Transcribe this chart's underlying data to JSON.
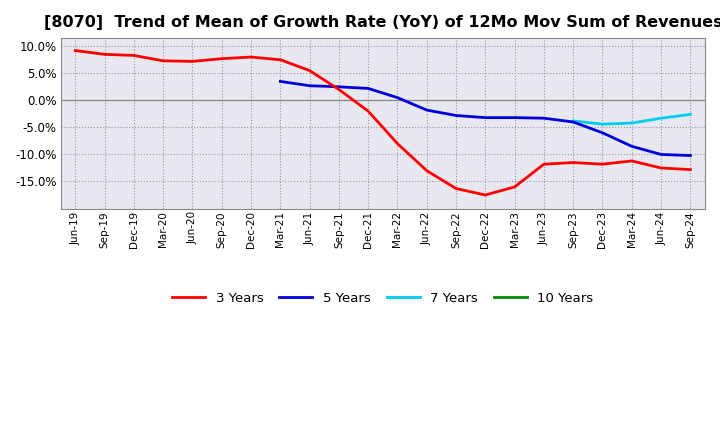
{
  "title": "[8070]  Trend of Mean of Growth Rate (YoY) of 12Mo Mov Sum of Revenues",
  "title_fontsize": 11.5,
  "background_color": "#ffffff",
  "plot_bg_color": "#e8e8f0",
  "grid_color": "#aaaaaa",
  "ylim": [
    -0.2,
    0.115
  ],
  "yticks": [
    -0.15,
    -0.1,
    -0.05,
    0.0,
    0.05,
    0.1
  ],
  "legend_labels": [
    "3 Years",
    "5 Years",
    "7 Years",
    "10 Years"
  ],
  "legend_colors": [
    "#ff0000",
    "#0000dd",
    "#00ccee",
    "#008800"
  ],
  "x_labels": [
    "Jun-19",
    "Sep-19",
    "Dec-19",
    "Mar-20",
    "Jun-20",
    "Sep-20",
    "Dec-20",
    "Mar-21",
    "Jun-21",
    "Sep-21",
    "Dec-21",
    "Mar-22",
    "Jun-22",
    "Sep-22",
    "Dec-22",
    "Mar-23",
    "Jun-23",
    "Sep-23",
    "Dec-23",
    "Mar-24",
    "Jun-24",
    "Sep-24"
  ],
  "series_3y": [
    0.092,
    0.085,
    0.083,
    0.073,
    0.072,
    0.077,
    0.08,
    0.075,
    0.055,
    0.02,
    -0.02,
    -0.08,
    -0.13,
    -0.163,
    -0.175,
    -0.16,
    -0.118,
    -0.115,
    -0.118,
    -0.112,
    -0.125,
    -0.128
  ],
  "series_5y": [
    null,
    null,
    null,
    null,
    null,
    null,
    null,
    0.035,
    0.027,
    0.025,
    0.022,
    0.005,
    -0.018,
    -0.028,
    -0.032,
    -0.032,
    -0.033,
    -0.04,
    -0.06,
    -0.085,
    -0.1,
    -0.102
  ],
  "series_7y": [
    null,
    null,
    null,
    null,
    null,
    null,
    null,
    null,
    null,
    null,
    null,
    null,
    null,
    null,
    null,
    null,
    null,
    -0.038,
    -0.044,
    -0.042,
    -0.033,
    -0.026
  ],
  "series_10y": [
    null,
    null,
    null,
    null,
    null,
    null,
    null,
    null,
    null,
    null,
    null,
    null,
    null,
    null,
    null,
    null,
    null,
    null,
    null,
    null,
    null,
    null
  ]
}
